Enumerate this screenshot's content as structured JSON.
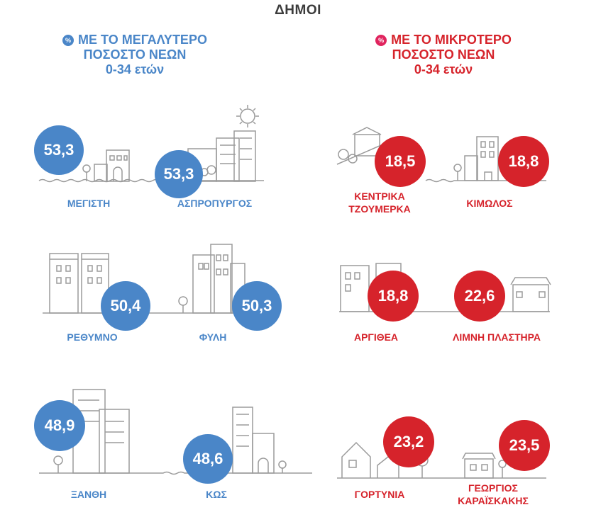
{
  "title": "ΔΗΜΟΙ",
  "left_header": {
    "icon": "percent-icon",
    "lines": [
      "ΜΕ ΤΟ ΜΕΓΑΛΥΤΕΡΟ",
      "ΠΟΣΟΣΤΟ ΝΕΩΝ",
      "0-34 ετών"
    ]
  },
  "right_header": {
    "icon": "percent-icon",
    "lines": [
      "ΜΕ ΤΟ ΜΙΚΡΟΤΕΡΟ",
      "ΠΟΣΟΣΤΟ ΝΕΩΝ",
      "0-34 ετών"
    ]
  },
  "colors": {
    "blue": "#4a86c8",
    "red": "#d6232b",
    "line_art": "#9b9b9b"
  },
  "highest": [
    {
      "value": "53,3",
      "label": [
        "ΜΕΓΙΣΤΗ"
      ]
    },
    {
      "value": "53,3",
      "label": [
        "ΑΣΠΡΟΠΥΡΓΟΣ"
      ]
    },
    {
      "value": "50,4",
      "label": [
        "ΡΕΘΥΜΝΟ"
      ]
    },
    {
      "value": "50,3",
      "label": [
        "ΦΥΛΗ"
      ]
    },
    {
      "value": "48,9",
      "label": [
        "ΞΑΝΘΗ"
      ]
    },
    {
      "value": "48,6",
      "label": [
        "ΚΩΣ"
      ]
    }
  ],
  "lowest": [
    {
      "value": "18,5",
      "label": [
        "ΚΕΝΤΡΙΚΑ",
        "ΤΖΟΥΜΕΡΚΑ"
      ]
    },
    {
      "value": "18,8",
      "label": [
        "ΚΙΜΩΛΟΣ"
      ]
    },
    {
      "value": "18,8",
      "label": [
        "ΑΡΓΙΘΕΑ"
      ]
    },
    {
      "value": "22,6",
      "label": [
        "ΛΙΜΝΗ ΠΛΑΣΤΗΡΑ"
      ]
    },
    {
      "value": "23,2",
      "label": [
        "ΓΟΡΤΥΝΙΑ"
      ]
    },
    {
      "value": "23,5",
      "label": [
        "ΓΕΩΡΓΙΟΣ",
        "ΚΑΡΑΪΣΚΑΚΗΣ"
      ]
    }
  ]
}
